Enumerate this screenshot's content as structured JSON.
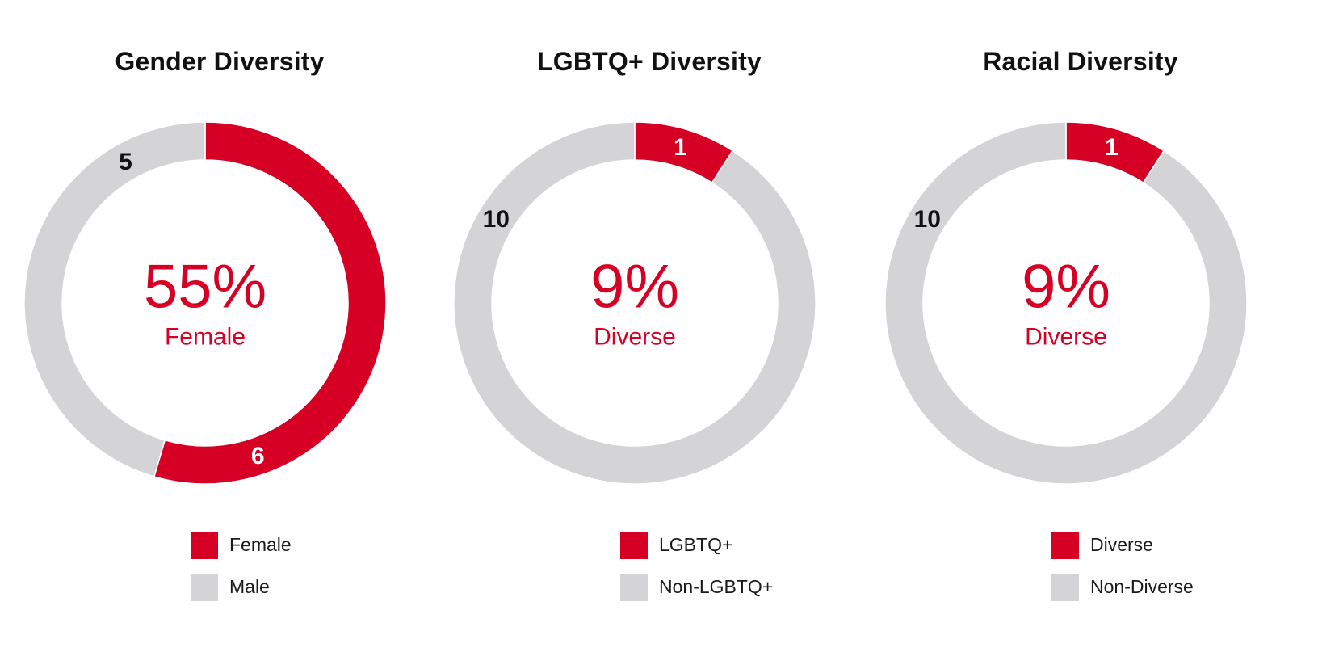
{
  "colors": {
    "accent": "#d50024",
    "neutral": "#d4d4d6",
    "text_dark": "#111111"
  },
  "chart_data": [
    {
      "type": "pie",
      "title": "Gender Diversity",
      "center_value": "55%",
      "center_label": "Female",
      "slices": [
        {
          "label": "Female",
          "value": 6,
          "color": "#d50024",
          "label_color": "#ffffff"
        },
        {
          "label": "Male",
          "value": 5,
          "color": "#d4d4d6",
          "label_color": "#111111"
        }
      ],
      "legend": [
        "Female",
        "Male"
      ]
    },
    {
      "type": "pie",
      "title": "LGBTQ+ Diversity",
      "center_value": "9%",
      "center_label": "Diverse",
      "slices": [
        {
          "label": "LGBTQ+",
          "value": 1,
          "color": "#d50024",
          "label_color": "#ffffff"
        },
        {
          "label": "Non-LGBTQ+",
          "value": 10,
          "color": "#d4d4d6",
          "label_color": "#111111"
        }
      ],
      "legend": [
        "LGBTQ+",
        "Non-LGBTQ+"
      ]
    },
    {
      "type": "pie",
      "title": "Racial Diversity",
      "center_value": "9%",
      "center_label": "Diverse",
      "slices": [
        {
          "label": "Diverse",
          "value": 1,
          "color": "#d50024",
          "label_color": "#ffffff"
        },
        {
          "label": "Non-Diverse",
          "value": 10,
          "color": "#d4d4d6",
          "label_color": "#111111"
        }
      ],
      "legend": [
        "Diverse",
        "Non-Diverse"
      ]
    }
  ]
}
